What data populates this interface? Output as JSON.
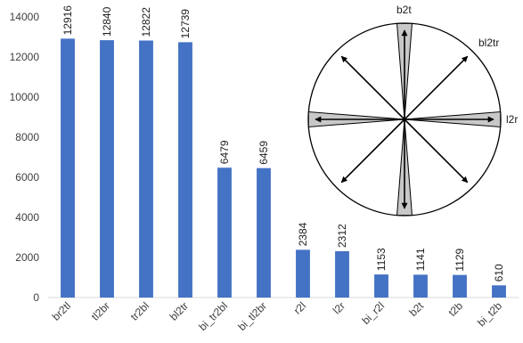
{
  "chart_data": {
    "type": "bar",
    "title": "",
    "xlabel": "",
    "ylabel": "",
    "ylim": [
      0,
      14000
    ],
    "yticks": [
      0,
      2000,
      4000,
      6000,
      8000,
      10000,
      12000,
      14000
    ],
    "grid": false,
    "bar_color": "#4472c4",
    "categories": [
      "br2tl",
      "tl2br",
      "tr2bl",
      "bl2tr",
      "bi_tr2bl",
      "bi_tl2br",
      "r2l",
      "l2r",
      "bi_r2l",
      "b2t",
      "t2b",
      "bi_t2b"
    ],
    "values": [
      12916,
      12840,
      12822,
      12739,
      6479,
      6459,
      2384,
      2312,
      1153,
      1141,
      1129,
      610
    ]
  },
  "inset_diagram": {
    "labels": {
      "top": "b2t",
      "diagonal": "bl2tr",
      "right": "l2r"
    },
    "wedge_fill": "#c8c8c8"
  }
}
